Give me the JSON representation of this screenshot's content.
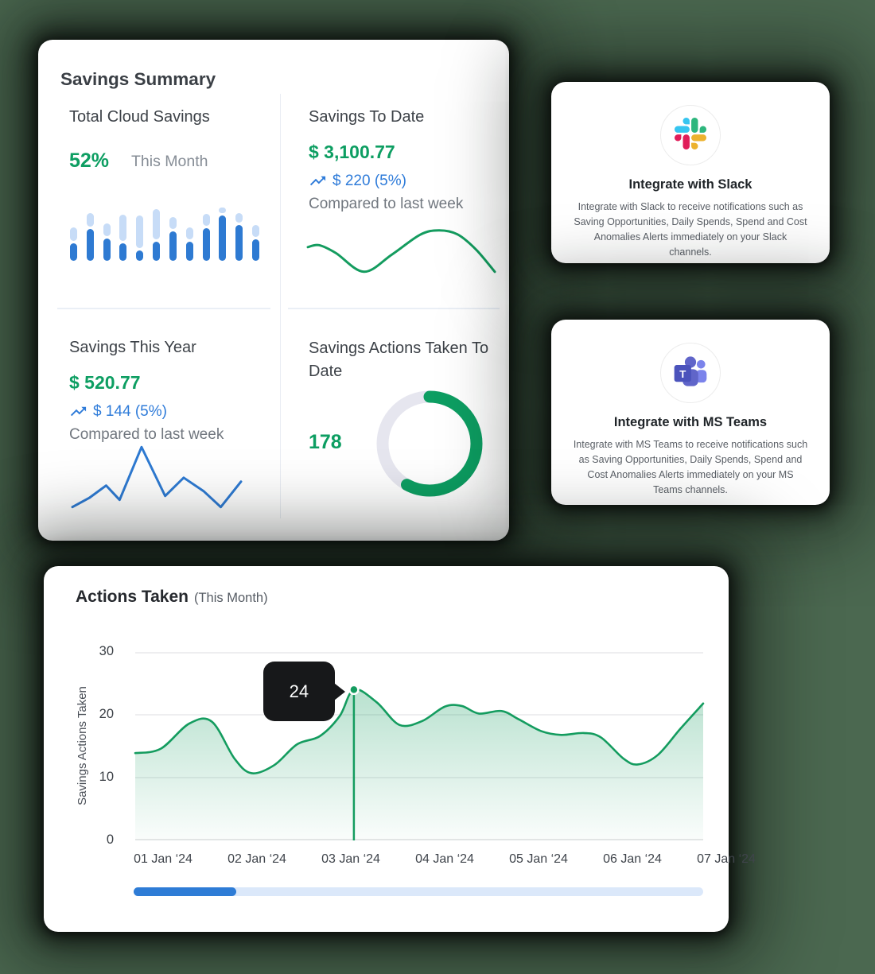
{
  "colors": {
    "page_bg": "#4b6850",
    "accent_green": "#0d9e62",
    "line_green": "#149c5f",
    "accent_blue": "#2e7bd9",
    "bar_dark_blue": "#2e7ad2",
    "bar_light_blue": "#c7dcf7",
    "donut_track": "#e6e6ef",
    "grid_line": "#e4e4e6",
    "tooltip_bg": "#17181a",
    "scroll_track": "#dbe8fa",
    "scroll_thumb": "#2e7cd6"
  },
  "summary": {
    "title": "Savings Summary",
    "total_cloud": {
      "title": "Total Cloud Savings",
      "value": "52%",
      "caption": "This Month",
      "bars": {
        "dark": [
          22,
          40,
          28,
          22,
          13,
          24,
          37,
          24,
          41,
          57,
          45,
          27
        ],
        "light": [
          17,
          17,
          16,
          33,
          41,
          38,
          15,
          15,
          15,
          7,
          12,
          15
        ]
      }
    },
    "to_date": {
      "title": "Savings To Date",
      "value": "$ 3,100.77",
      "trend": "$ 220 (5%)",
      "caption": "Compared to last week",
      "spark": [
        [
          0,
          0.4
        ],
        [
          0.06,
          0.36
        ],
        [
          0.15,
          0.52
        ],
        [
          0.3,
          0.9
        ],
        [
          0.45,
          0.55
        ],
        [
          0.6,
          0.15
        ],
        [
          0.7,
          0.06
        ],
        [
          0.8,
          0.14
        ],
        [
          0.9,
          0.45
        ],
        [
          1,
          0.9
        ]
      ]
    },
    "this_year": {
      "title": "Savings This Year",
      "value": "$ 520.77",
      "trend": "$ 144 (5%)",
      "caption": "Compared to last week",
      "spark": [
        [
          0,
          0.96
        ],
        [
          0.1,
          0.82
        ],
        [
          0.2,
          0.63
        ],
        [
          0.28,
          0.85
        ],
        [
          0.41,
          0.04
        ],
        [
          0.55,
          0.79
        ],
        [
          0.66,
          0.51
        ],
        [
          0.78,
          0.72
        ],
        [
          0.88,
          0.96
        ],
        [
          1,
          0.57
        ]
      ]
    },
    "actions_to_date": {
      "title": "Savings Actions Taken To Date",
      "value": "178",
      "donut_percent": 58
    }
  },
  "integrations": {
    "slack": {
      "title": "Integrate with Slack",
      "body": "Integrate with Slack to receive notifications such as Saving Opportunities, Daily Spends, Spend and Cost Anomalies Alerts immediately on your Slack channels."
    },
    "teams": {
      "title": "Integrate with MS Teams",
      "body": "Integrate with MS Teams to receive notifications such as Saving Opportunities, Daily Spends, Spend and Cost Anomalies Alerts immediately on your MS Teams channels."
    }
  },
  "actions": {
    "title": "Actions Taken",
    "subtitle": "(This Month)",
    "tooltip_value": "24"
  },
  "chart_data": {
    "type": "area",
    "title": "Actions Taken (This Month)",
    "xlabel": "",
    "ylabel": "Savings Actions Taken",
    "ylim": [
      0,
      30
    ],
    "yticks": [
      30,
      20,
      10,
      0
    ],
    "xticks": [
      "01 Jan ‘24",
      "02 Jan ‘24",
      "03 Jan ‘24",
      "04 Jan ‘24",
      "05 Jan ‘24",
      "06 Jan ‘24",
      "07 Jan ‘24"
    ],
    "grid": true,
    "legend": false,
    "marker": {
      "index": 10,
      "label": "24"
    },
    "points": [
      [
        0.0,
        13.9
      ],
      [
        0.045,
        14.6
      ],
      [
        0.095,
        18.6
      ],
      [
        0.135,
        18.9
      ],
      [
        0.175,
        13.0
      ],
      [
        0.205,
        10.7
      ],
      [
        0.245,
        12.0
      ],
      [
        0.285,
        15.3
      ],
      [
        0.325,
        16.6
      ],
      [
        0.36,
        19.8
      ],
      [
        0.385,
        24.0
      ],
      [
        0.425,
        22.0
      ],
      [
        0.465,
        18.4
      ],
      [
        0.505,
        19.0
      ],
      [
        0.545,
        21.3
      ],
      [
        0.575,
        21.4
      ],
      [
        0.605,
        20.2
      ],
      [
        0.645,
        20.6
      ],
      [
        0.675,
        19.3
      ],
      [
        0.715,
        17.4
      ],
      [
        0.75,
        16.8
      ],
      [
        0.79,
        17.1
      ],
      [
        0.82,
        16.4
      ],
      [
        0.86,
        13.0
      ],
      [
        0.885,
        12.1
      ],
      [
        0.92,
        13.6
      ],
      [
        0.96,
        17.8
      ],
      [
        1.0,
        21.8
      ]
    ]
  }
}
